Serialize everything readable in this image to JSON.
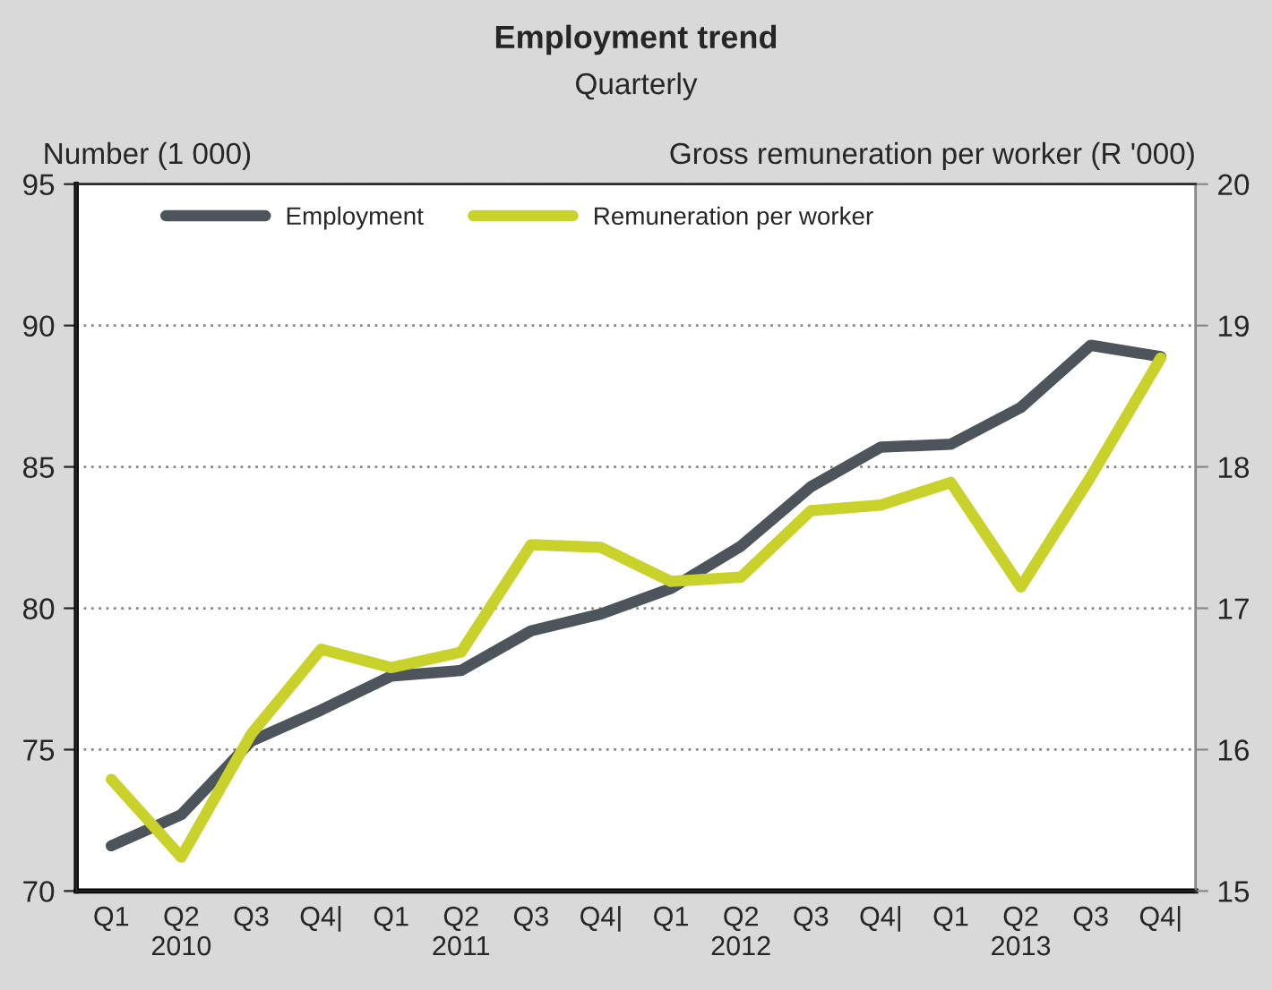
{
  "chart_data": {
    "type": "line",
    "title": "Employment trend",
    "subtitle": "Quarterly",
    "ylabel": "Number (1 000)",
    "y2label": "Gross remuneration per worker (R '000)",
    "categories": [
      "Q1",
      "Q2\n2010",
      "Q3",
      "Q4|",
      "Q1",
      "Q2\n2011",
      "Q3",
      "Q4|",
      "Q1",
      "Q2\n2012",
      "Q3",
      "Q4|",
      "Q1",
      "Q2\n2013",
      "Q3",
      "Q4|"
    ],
    "series": [
      {
        "name": "Employment",
        "color": "#4d545c",
        "values": [
          71.6,
          72.7,
          75.3,
          76.4,
          77.6,
          77.8,
          79.2,
          79.8,
          80.7,
          82.2,
          84.3,
          85.7,
          85.8,
          87.1,
          89.3,
          88.9
        ]
      },
      {
        "name": "Remuneration per worker",
        "color": "#c8d22a",
        "axis": "y2",
        "values": [
          15.79,
          15.24,
          16.11,
          16.71,
          16.58,
          16.69,
          17.45,
          17.43,
          17.19,
          17.22,
          17.69,
          17.73,
          17.89,
          17.15,
          17.93,
          18.77
        ]
      }
    ],
    "ylim": [
      70,
      95
    ],
    "yticks": [
      70,
      75,
      80,
      85,
      90,
      95
    ],
    "y2lim": [
      15,
      20
    ],
    "y2ticks": [
      15,
      16,
      17,
      18,
      19,
      20
    ],
    "grid": "y",
    "legend": "top left",
    "marker": "none",
    "line_style": "solid"
  }
}
